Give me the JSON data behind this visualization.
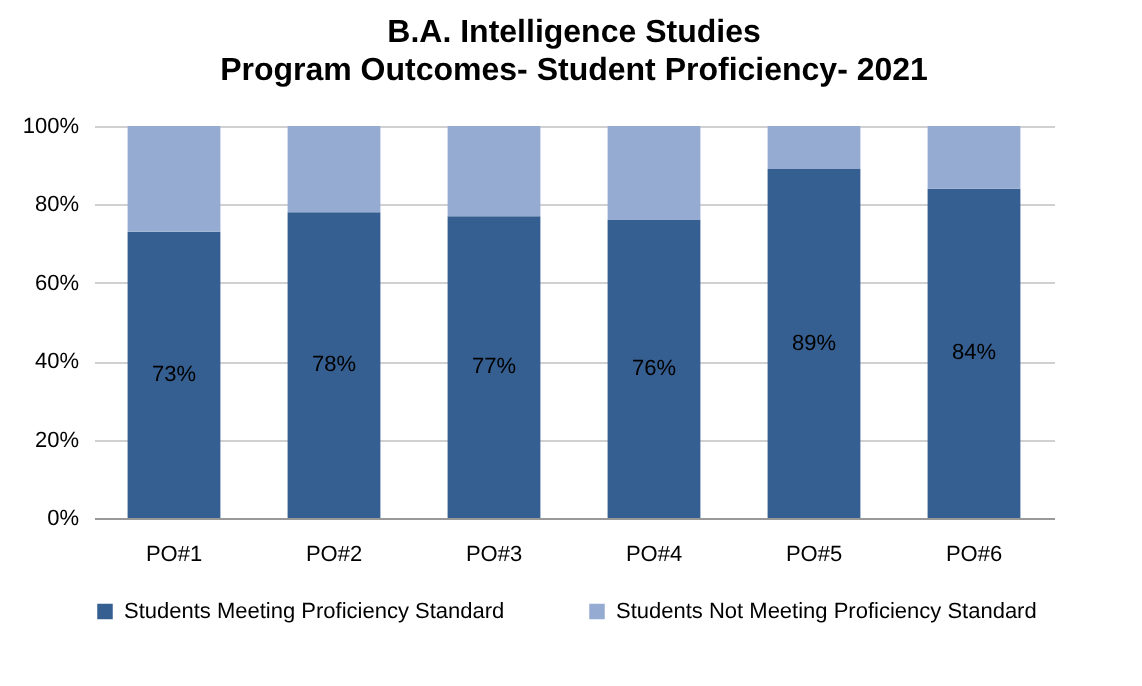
{
  "chart_data": {
    "type": "bar",
    "title": "B.A. Intelligence Studies",
    "subtitle": "Program Outcomes- Student Proficiency- 2021",
    "categories": [
      "PO#1",
      "PO#2",
      "PO#3",
      "PO#4",
      "PO#5",
      "PO#6"
    ],
    "stacked": true,
    "series": [
      {
        "name": "Students Meeting Proficiency Standard",
        "color": "#355f91",
        "values": [
          73,
          78,
          77,
          76,
          89,
          84
        ],
        "value_labels": [
          "73%",
          "78%",
          "77%",
          "76%",
          "89%",
          "84%"
        ]
      },
      {
        "name": "Students Not Meeting Proficiency Standard",
        "color": "#95abd2",
        "values": [
          27,
          22,
          23,
          24,
          11,
          16
        ]
      }
    ],
    "ylim": [
      0,
      100
    ],
    "yticks": [
      {
        "value": 0,
        "label": "0%"
      },
      {
        "value": 20,
        "label": "20%"
      },
      {
        "value": 40,
        "label": "40%"
      },
      {
        "value": 60,
        "label": "60%"
      },
      {
        "value": 80,
        "label": "80%"
      },
      {
        "value": 100,
        "label": "100%"
      }
    ],
    "grid": "y",
    "legend": "bottom"
  }
}
